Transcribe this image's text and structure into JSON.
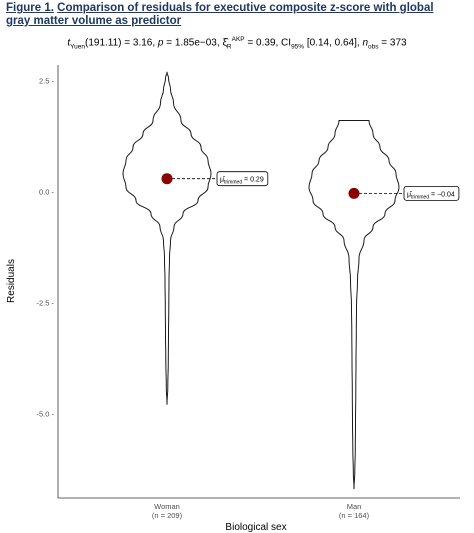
{
  "figure": {
    "label": "Figure 1.",
    "title": "Comparison of residuals for executive composite z-score with global gray matter volume as predictor"
  },
  "stats": {
    "t_sym": "t",
    "t_sub": "Yuen",
    "t_df_val": "(191.11) = 3.16, ",
    "p_sym": "p",
    "p_val": " = 1.85e−03, ",
    "xi_sym": "ξ̂",
    "xi_sub": "R",
    "xi_sup": "AKP",
    "xi_val": " = 0.39, CI",
    "ci_sub": "95%",
    "ci_val": " [0.14, 0.64], ",
    "n_sym": "n",
    "n_sub": "obs",
    "n_val": " = 373"
  },
  "chart_data": {
    "type": "violin",
    "xlabel": "Biological sex",
    "ylabel": "Residuals",
    "ylim": [
      -6.9,
      2.85
    ],
    "yticks": [
      2.5,
      0.0,
      -2.5,
      -5.0
    ],
    "ytick_labels": [
      "2.5 -",
      "0.0 -",
      "-2.5 -",
      "-5.0 -"
    ],
    "grid": false,
    "categories": [
      {
        "name": "Woman",
        "n_label": "(n = 209)",
        "trimmed_mean": 0.29,
        "mean_label_prefix": "μ̂",
        "mean_label_sub": "trimmed",
        "mean_label_value": " = 0.29",
        "density_profile": [
          [
            2.7,
            0.0
          ],
          [
            2.55,
            0.03
          ],
          [
            2.3,
            0.07
          ],
          [
            2.0,
            0.13
          ],
          [
            1.6,
            0.28
          ],
          [
            1.3,
            0.48
          ],
          [
            1.0,
            0.68
          ],
          [
            0.7,
            0.82
          ],
          [
            0.4,
            0.88
          ],
          [
            0.1,
            0.82
          ],
          [
            -0.2,
            0.62
          ],
          [
            -0.5,
            0.32
          ],
          [
            -0.8,
            0.14
          ],
          [
            -1.1,
            0.07
          ],
          [
            -1.5,
            0.05
          ],
          [
            -2.0,
            0.04
          ],
          [
            -2.6,
            0.035
          ],
          [
            -3.2,
            0.03
          ],
          [
            -3.8,
            0.025
          ],
          [
            -4.4,
            0.015
          ],
          [
            -4.8,
            0.0
          ]
        ]
      },
      {
        "name": "Man",
        "n_label": "(n = 164)",
        "trimmed_mean": -0.04,
        "mean_label_prefix": "μ̂",
        "mean_label_sub": "trimmed",
        "mean_label_value": " = −0.04",
        "density_profile": [
          [
            1.6,
            0.3
          ],
          [
            1.3,
            0.38
          ],
          [
            1.0,
            0.52
          ],
          [
            0.7,
            0.7
          ],
          [
            0.4,
            0.84
          ],
          [
            0.1,
            0.9
          ],
          [
            -0.2,
            0.82
          ],
          [
            -0.5,
            0.62
          ],
          [
            -0.8,
            0.38
          ],
          [
            -1.1,
            0.2
          ],
          [
            -1.5,
            0.1
          ],
          [
            -2.0,
            0.07
          ],
          [
            -2.6,
            0.05
          ],
          [
            -3.2,
            0.045
          ],
          [
            -3.8,
            0.04
          ],
          [
            -4.5,
            0.035
          ],
          [
            -5.2,
            0.03
          ],
          [
            -5.8,
            0.025
          ],
          [
            -6.3,
            0.015
          ],
          [
            -6.7,
            0.0
          ]
        ]
      }
    ],
    "mean_point_color": "#8b0000",
    "violin_stroke": "#1a1a1a"
  }
}
